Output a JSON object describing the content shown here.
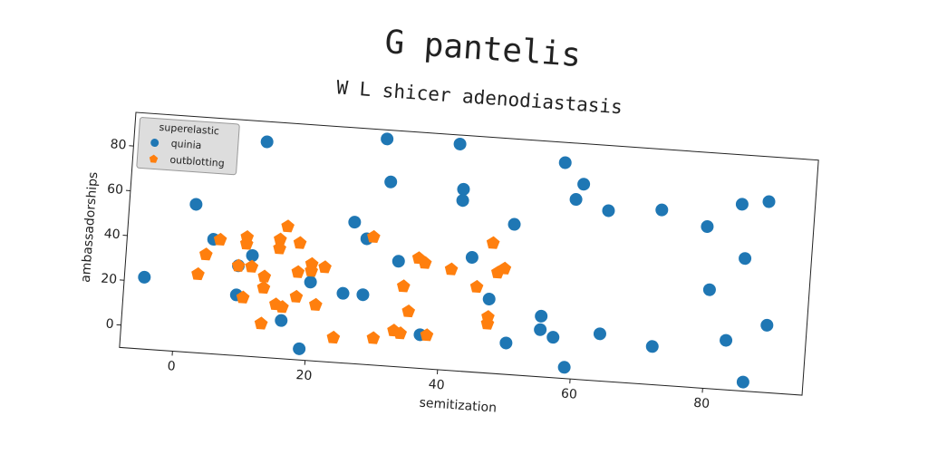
{
  "chart_data": {
    "type": "scatter",
    "title": "G pantelis",
    "subtitle": "W L shicer adenodiastasis",
    "x_label": "semitization",
    "y_label": "ambassadorships",
    "legend_title": "superelastic",
    "legend": "upper left",
    "xlim": [
      -8,
      95
    ],
    "ylim": [
      -10,
      95
    ],
    "xticks": [
      0,
      20,
      40,
      60,
      80
    ],
    "yticks": [
      0,
      20,
      40,
      60,
      80
    ],
    "series": [
      {
        "name": "quinia",
        "color": "#1f77b4",
        "marker": "circle",
        "x": [
          -5,
          2,
          5,
          12,
          11,
          9,
          9,
          16,
          19,
          20,
          26,
          25,
          28,
          28,
          30,
          31,
          33,
          37,
          41,
          42,
          42,
          44,
          47,
          50,
          50,
          55,
          55,
          57,
          57,
          60,
          59,
          59,
          64,
          64,
          72,
          72,
          79,
          80,
          83,
          84,
          85,
          88,
          89,
          86
        ],
        "values": [
          22,
          56,
          41,
          86,
          35,
          30,
          17,
          7,
          -5,
          25,
          53,
          21,
          21,
          46,
          91,
          72,
          37,
          5,
          91,
          71,
          66,
          41,
          23,
          57,
          4,
          17,
          11,
          86,
          8,
          77,
          70,
          -5,
          66,
          11,
          68,
          7,
          62,
          34,
          12,
          73,
          49,
          75,
          20,
          -6
        ]
      },
      {
        "name": "outblotting",
        "color": "#ff7f0e",
        "marker": "pentagon",
        "x": [
          3,
          4,
          6,
          9,
          10,
          10,
          11,
          10,
          13,
          13,
          15,
          15,
          16,
          13,
          15,
          16,
          18,
          18,
          18,
          20,
          20,
          22,
          21,
          24,
          29,
          30,
          33,
          34,
          34,
          35,
          36,
          37,
          38,
          41,
          45,
          47,
          47,
          47,
          48,
          49
        ],
        "values": [
          25,
          34,
          41,
          30,
          43,
          40,
          30,
          16,
          26,
          21,
          43,
          39,
          49,
          5,
          14,
          13,
          42,
          29,
          18,
          33,
          30,
          32,
          15,
          1,
          47,
          2,
          6,
          5,
          26,
          15,
          39,
          37,
          5,
          35,
          28,
          48,
          15,
          12,
          35,
          37
        ]
      }
    ]
  }
}
